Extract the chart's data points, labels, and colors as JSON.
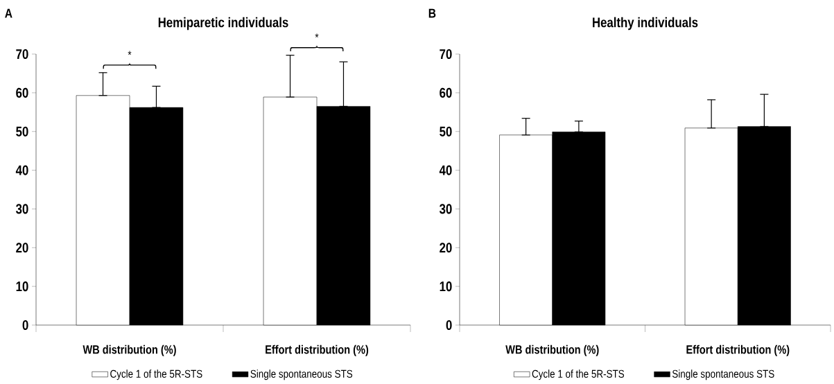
{
  "chart_data": [
    {
      "type": "bar",
      "title": "Hemiparetic individuals",
      "categories": [
        "WB distribution (%)",
        "Effort distribution (%)"
      ],
      "series": [
        {
          "name": "Cycle 1 of the 5R-STS",
          "color": "#ffffff",
          "values": [
            59.3,
            58.9
          ],
          "errors": [
            [
              59.3,
              65.2
            ],
            [
              58.9,
              69.7
            ]
          ]
        },
        {
          "name": "Single spontaneous STS",
          "color": "#000000",
          "values": [
            56.2,
            56.5
          ],
          "errors": [
            [
              56.2,
              61.7
            ],
            [
              56.5,
              68.0
            ]
          ]
        }
      ],
      "ylim": [
        0,
        70
      ],
      "yticks": [
        0,
        10,
        20,
        30,
        40,
        50,
        60,
        70
      ],
      "legend": "bottom",
      "annotations": [
        "A",
        "*",
        "*"
      ]
    },
    {
      "type": "bar",
      "title": "Healthy individuals",
      "categories": [
        "WB distribution (%)",
        "Effort distribution (%)"
      ],
      "series": [
        {
          "name": "Cycle 1 of the 5R-STS",
          "color": "#ffffff",
          "values": [
            49.1,
            50.9
          ],
          "errors": [
            [
              49.1,
              53.4
            ],
            [
              50.9,
              58.2
            ]
          ]
        },
        {
          "name": "Single spontaneous STS",
          "color": "#000000",
          "values": [
            49.9,
            51.3
          ],
          "errors": [
            [
              49.9,
              52.7
            ],
            [
              51.3,
              59.6
            ]
          ]
        }
      ],
      "ylim": [
        0,
        70
      ],
      "yticks": [
        0,
        10,
        20,
        30,
        40,
        50,
        60,
        70
      ],
      "legend": "bottom",
      "annotations": [
        "B"
      ]
    }
  ]
}
